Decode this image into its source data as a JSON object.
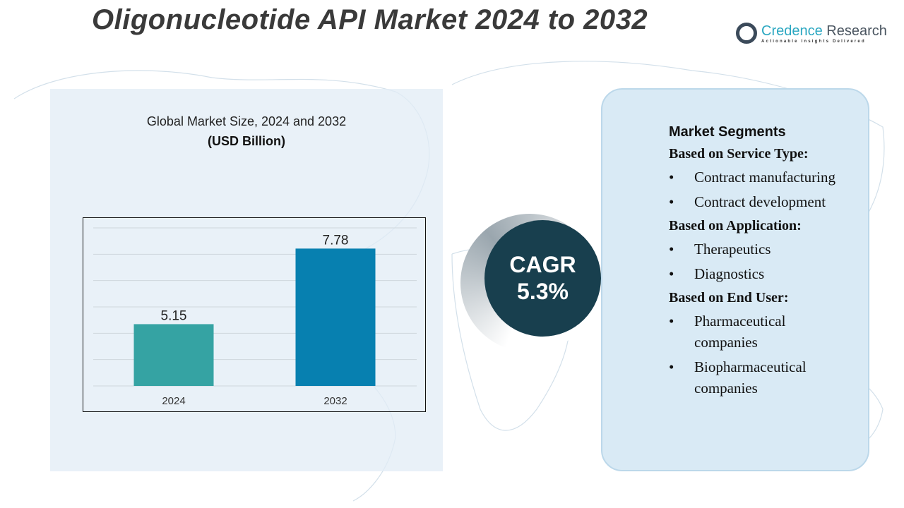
{
  "title": "Oligonucleotide API Market 2024 to 2032",
  "logo": {
    "name_a": "Credence",
    "name_b": " Research",
    "tagline": "Actionable Insights Delivered"
  },
  "chart_data": {
    "type": "bar",
    "title": "Global Market Size, 2024 and 2032",
    "subtitle": "(USD Billion)",
    "categories": [
      "2024",
      "2032"
    ],
    "values": [
      5.15,
      7.78
    ],
    "data_labels": [
      "5.15",
      "7.78"
    ],
    "colors": [
      "#35a3a3",
      "#0780b0"
    ],
    "ylim": [
      3,
      8.5
    ],
    "grid": true
  },
  "cagr": {
    "label": "CAGR",
    "value": "5.3%"
  },
  "segments": {
    "heading": "Market Segments",
    "groups": [
      {
        "title": "Based on Service Type:",
        "items": [
          "Contract manufacturing",
          "Contract development"
        ]
      },
      {
        "title": "Based on Application:",
        "items": [
          "Therapeutics",
          "Diagnostics"
        ]
      },
      {
        "title": "Based on End User:",
        "items": [
          "Pharmaceutical companies",
          "Biopharmaceutical companies"
        ]
      }
    ]
  }
}
